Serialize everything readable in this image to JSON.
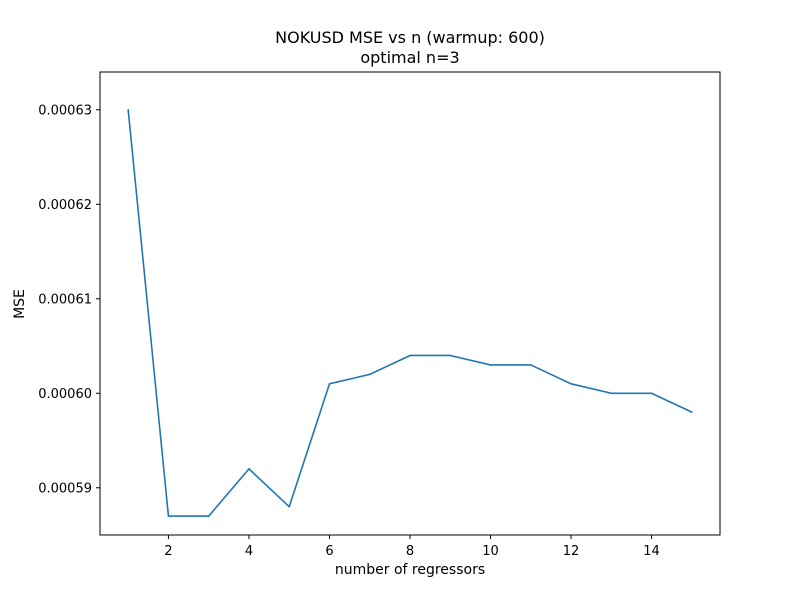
{
  "chart_data": {
    "type": "line",
    "title": "NOKUSD MSE vs n (warmup: 600)",
    "subtitle": "optimal n=3",
    "xlabel": "number of regressors",
    "ylabel": "MSE",
    "xlim": [
      0.3,
      15.7
    ],
    "ylim": [
      0.000585,
      0.000634
    ],
    "x_ticks": [
      2,
      4,
      6,
      8,
      10,
      12,
      14
    ],
    "x_tick_labels": [
      "2",
      "4",
      "6",
      "8",
      "10",
      "12",
      "14"
    ],
    "y_ticks": [
      0.00059,
      0.0006,
      0.00061,
      0.00062,
      0.00063
    ],
    "y_tick_labels": [
      "0.00059",
      "0.00060",
      "0.00061",
      "0.00062",
      "0.00063"
    ],
    "grid": false,
    "legend": "none",
    "line_color": "#1f77b4",
    "series": [
      {
        "x": [
          1,
          2,
          3,
          4,
          5,
          6,
          7,
          8,
          9,
          10,
          11,
          12,
          13,
          14,
          15
        ],
        "values": [
          0.00063,
          0.000587,
          0.000587,
          0.000592,
          0.000588,
          0.000601,
          0.000602,
          0.000604,
          0.000604,
          0.000603,
          0.000603,
          0.000601,
          0.0006,
          0.0006,
          0.000598
        ]
      }
    ]
  }
}
